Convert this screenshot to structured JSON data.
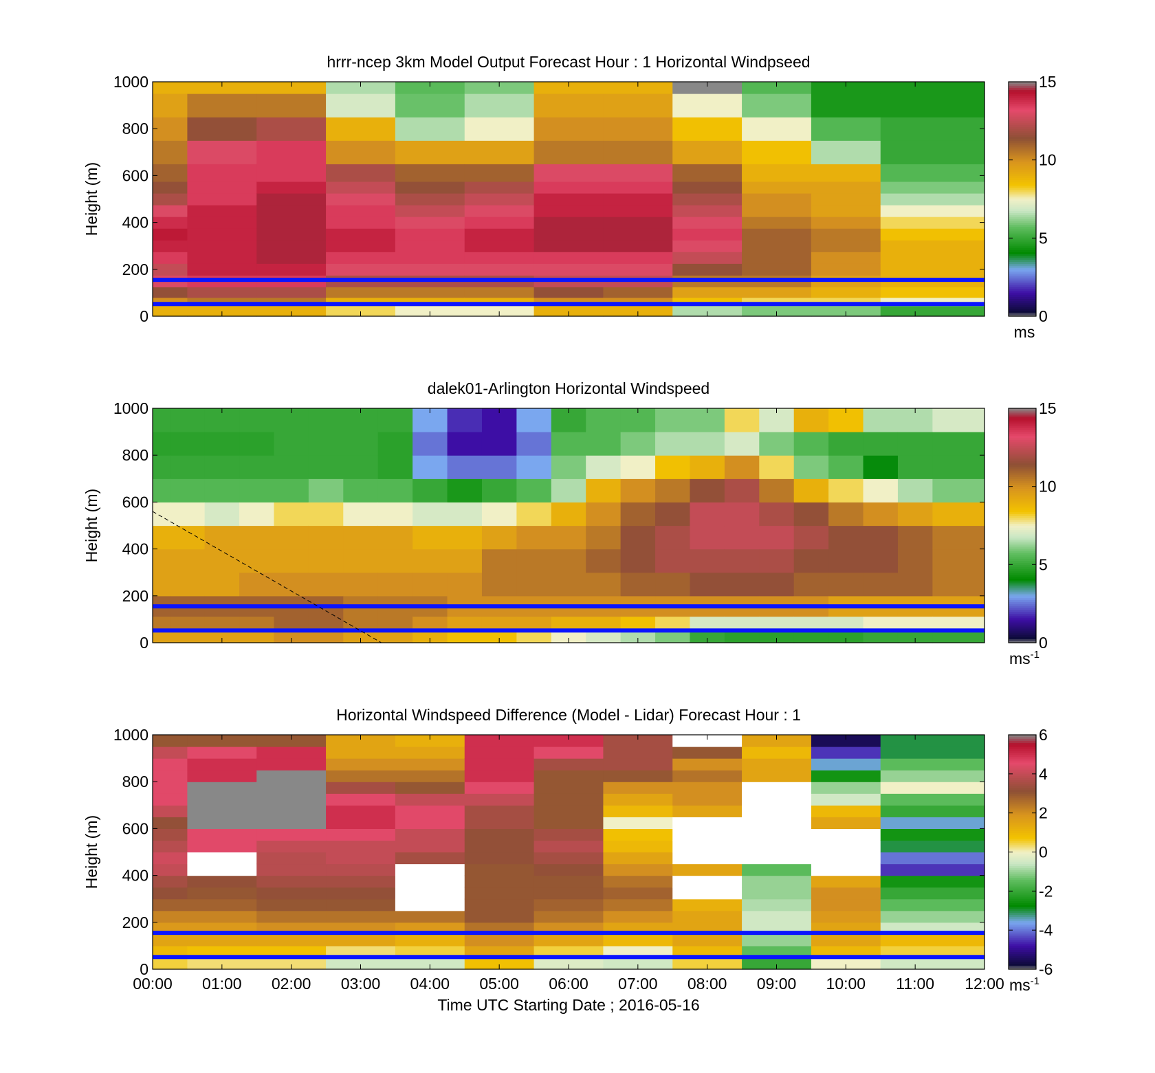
{
  "figure": {
    "xlabel": "Time UTC  Starting Date ; 2016-05-16",
    "colors": {
      "reference_line": "#0a14ff",
      "missing": "#ffffff",
      "dashed_line": "#000000"
    }
  },
  "chart_data": [
    {
      "type": "heatmap",
      "title": "hrrr-ncep 3km Model Output   Forecast Hour : 1 Horizontal Windpseed",
      "ylabel": "Height (m)",
      "ylim": [
        0,
        1000
      ],
      "y_ticks": [
        "0",
        "200",
        "400",
        "600",
        "800",
        "1000"
      ],
      "xlim_hours": [
        0,
        12
      ],
      "colorbar": {
        "min": 0,
        "max": 15,
        "ticks": [
          "0",
          "5",
          "10",
          "15"
        ],
        "unit": "ms",
        "unit_sup": ""
      },
      "reference_lines_m": [
        155,
        52
      ],
      "time_hours": [
        0,
        1,
        2,
        3,
        4,
        5,
        6,
        7,
        8,
        9,
        10,
        11
      ],
      "heights_m": [
        30,
        60,
        100,
        150,
        200,
        250,
        300,
        350,
        400,
        450,
        500,
        550,
        600,
        700,
        800,
        900,
        1000
      ],
      "values": [
        [
          9.0,
          10.0,
          11.5,
          13.0,
          12.5,
          13.5,
          14.0,
          14.2,
          13.8,
          13.0,
          12.0,
          11.5,
          11.0,
          10.5,
          10.0,
          9.5,
          9.0
        ],
        [
          9.0,
          10.5,
          12.0,
          13.5,
          14.0,
          14.0,
          14.0,
          14.0,
          14.0,
          14.0,
          13.5,
          13.5,
          13.5,
          13.0,
          11.5,
          10.5,
          9.0
        ],
        [
          9.0,
          10.5,
          12.0,
          13.5,
          14.0,
          14.5,
          14.5,
          14.5,
          14.5,
          14.5,
          14.5,
          14.0,
          13.5,
          13.5,
          12.0,
          10.5,
          9.0
        ],
        [
          8.0,
          9.0,
          10.5,
          12.0,
          13.0,
          13.5,
          14.0,
          14.0,
          13.5,
          13.5,
          13.0,
          12.5,
          12.0,
          10.0,
          9.0,
          7.0,
          6.5
        ],
        [
          7.5,
          9.0,
          10.5,
          12.0,
          13.0,
          13.5,
          13.5,
          13.5,
          13.0,
          12.5,
          12.0,
          11.5,
          11.0,
          9.5,
          6.5,
          5.8,
          5.6
        ],
        [
          7.5,
          9.0,
          10.5,
          12.0,
          13.0,
          13.5,
          14.0,
          14.0,
          13.5,
          13.0,
          12.5,
          12.0,
          11.0,
          9.5,
          7.5,
          6.5,
          6.0
        ],
        [
          9.0,
          10.0,
          11.5,
          12.5,
          13.0,
          13.5,
          14.5,
          14.5,
          14.5,
          14.0,
          14.0,
          13.5,
          13.0,
          10.5,
          10.0,
          9.5,
          9.0
        ],
        [
          9.0,
          10.0,
          11.0,
          12.5,
          13.0,
          13.5,
          14.5,
          14.5,
          14.5,
          14.0,
          14.0,
          13.5,
          13.0,
          10.5,
          10.0,
          9.5,
          9.0
        ],
        [
          6.5,
          8.5,
          9.5,
          10.5,
          11.5,
          12.5,
          13.0,
          13.5,
          13.0,
          12.5,
          12.0,
          11.5,
          11.0,
          9.5,
          8.5,
          7.5,
          16.0
        ],
        [
          6.0,
          8.0,
          9.5,
          10.5,
          11.0,
          11.0,
          11.0,
          11.0,
          10.5,
          10.0,
          10.0,
          9.5,
          9.0,
          8.5,
          7.5,
          6.0,
          5.5
        ],
        [
          6.0,
          8.0,
          9.0,
          9.5,
          10.0,
          10.0,
          10.5,
          10.5,
          10.0,
          9.5,
          9.5,
          9.5,
          9.0,
          6.5,
          5.5,
          4.5,
          4.5
        ],
        [
          5.0,
          7.5,
          8.5,
          9.0,
          9.0,
          9.0,
          9.0,
          8.5,
          8.0,
          7.5,
          6.5,
          6.0,
          5.5,
          5.0,
          5.0,
          4.5,
          4.5
        ]
      ]
    },
    {
      "type": "heatmap",
      "title": "dalek01-Arlington  Horizontal Windspeed",
      "ylabel": "Height (m)",
      "ylim": [
        0,
        1000
      ],
      "y_ticks": [
        "0",
        "200",
        "400",
        "600",
        "800",
        "1000"
      ],
      "xlim_hours": [
        0,
        12
      ],
      "colorbar": {
        "min": 0,
        "max": 15,
        "ticks": [
          "0",
          "5",
          "10",
          "15"
        ],
        "unit": "ms",
        "unit_sup": "-1"
      },
      "reference_lines_m": [
        155,
        52
      ],
      "dashed_line": {
        "from": [
          0,
          560
        ],
        "to": [
          3.3,
          0
        ]
      },
      "time_hours": [
        0,
        0.5,
        1,
        1.5,
        2,
        2.5,
        3,
        3.5,
        4,
        4.5,
        5,
        5.5,
        6,
        6.5,
        7,
        7.5,
        8,
        8.5,
        9,
        9.5,
        10,
        10.5,
        11,
        11.5
      ],
      "heights_m": [
        25,
        75,
        150,
        250,
        350,
        450,
        550,
        650,
        750,
        850,
        950
      ],
      "values": [
        [
          9.5,
          10.5,
          11.0,
          9.5,
          9.5,
          9.0,
          7.5,
          5.5,
          5.0,
          4.8,
          5.0
        ],
        [
          9.5,
          10.5,
          11.0,
          9.5,
          9.5,
          9.0,
          7.5,
          5.5,
          5.0,
          4.8,
          5.0
        ],
        [
          9.5,
          10.5,
          11.0,
          9.5,
          9.5,
          9.5,
          7.0,
          5.5,
          5.0,
          4.8,
          5.0
        ],
        [
          9.5,
          10.5,
          11.0,
          10.0,
          9.5,
          9.5,
          7.5,
          5.5,
          5.0,
          4.8,
          5.0
        ],
        [
          10.0,
          11.0,
          11.0,
          10.0,
          9.5,
          9.5,
          8.0,
          5.5,
          5.0,
          5.0,
          5.0
        ],
        [
          10.0,
          11.0,
          11.0,
          10.0,
          9.5,
          9.5,
          8.0,
          6.0,
          5.0,
          5.0,
          5.0
        ],
        [
          9.5,
          10.5,
          10.5,
          10.0,
          9.5,
          9.5,
          7.5,
          5.5,
          5.0,
          5.0,
          5.0
        ],
        [
          9.5,
          10.5,
          10.5,
          10.0,
          9.5,
          9.5,
          7.5,
          5.5,
          4.8,
          4.8,
          5.0
        ],
        [
          9.0,
          10.0,
          10.5,
          10.0,
          9.5,
          9.0,
          7.0,
          5.0,
          3.0,
          2.5,
          3.0
        ],
        [
          8.5,
          9.5,
          10.0,
          10.0,
          9.5,
          9.0,
          7.0,
          4.5,
          2.5,
          1.5,
          1.8
        ],
        [
          8.5,
          9.5,
          10.0,
          10.5,
          10.5,
          9.5,
          7.5,
          5.0,
          2.5,
          1.5,
          1.5
        ],
        [
          8.0,
          9.5,
          10.0,
          10.5,
          10.5,
          10.0,
          8.0,
          5.5,
          3.0,
          2.5,
          3.0
        ],
        [
          7.5,
          9.0,
          10.0,
          10.5,
          10.5,
          10.0,
          9.0,
          6.5,
          6.0,
          5.5,
          5.0
        ],
        [
          7.0,
          9.0,
          10.0,
          10.5,
          11.0,
          10.5,
          10.0,
          9.0,
          7.0,
          5.5,
          5.5
        ],
        [
          6.5,
          8.5,
          10.0,
          11.0,
          11.5,
          11.5,
          11.0,
          10.0,
          7.5,
          6.0,
          5.5
        ],
        [
          6.0,
          8.0,
          10.0,
          11.0,
          12.0,
          12.0,
          11.5,
          10.5,
          8.5,
          6.5,
          6.0
        ],
        [
          5.0,
          7.0,
          10.0,
          11.5,
          12.0,
          12.5,
          12.5,
          11.5,
          9.0,
          6.5,
          6.0
        ],
        [
          4.8,
          7.0,
          10.0,
          11.5,
          12.0,
          12.5,
          12.5,
          12.0,
          10.0,
          7.0,
          8.0
        ],
        [
          4.8,
          7.0,
          10.0,
          11.5,
          12.0,
          12.5,
          12.0,
          10.5,
          8.0,
          6.0,
          7.0
        ],
        [
          4.8,
          7.0,
          10.0,
          11.0,
          11.5,
          12.0,
          11.5,
          9.0,
          6.0,
          5.5,
          9.0
        ],
        [
          4.8,
          7.0,
          9.5,
          11.0,
          11.5,
          11.5,
          10.5,
          8.0,
          5.5,
          5.0,
          8.5
        ],
        [
          5.0,
          7.5,
          9.5,
          11.0,
          11.5,
          11.5,
          10.0,
          7.5,
          4.0,
          5.0,
          6.5
        ],
        [
          5.0,
          7.5,
          9.5,
          11.0,
          11.0,
          11.0,
          9.5,
          6.5,
          5.0,
          5.0,
          6.5
        ],
        [
          5.0,
          7.5,
          9.5,
          10.5,
          10.5,
          10.5,
          9.0,
          6.0,
          5.0,
          5.0,
          7.0
        ]
      ]
    },
    {
      "type": "heatmap",
      "title": "Horizontal Windspeed Difference (Model - Lidar) Forecast Hour : 1",
      "ylabel": "Height (m)",
      "ylim": [
        0,
        1000
      ],
      "y_ticks": [
        "0",
        "200",
        "400",
        "600",
        "800",
        "1000"
      ],
      "x_ticks": [
        "00:00",
        "01:00",
        "02:00",
        "03:00",
        "04:00",
        "05:00",
        "06:00",
        "07:00",
        "08:00",
        "09:00",
        "10:00",
        "11:00",
        "12:00"
      ],
      "xlim_hours": [
        0,
        12
      ],
      "colorbar": {
        "min": -6,
        "max": 6,
        "ticks": [
          "-6",
          "-4",
          "-2",
          "0",
          "2",
          "4",
          "6"
        ],
        "unit": "ms",
        "unit_sup": "-1"
      },
      "reference_lines_m": [
        155,
        52
      ],
      "time_hours": [
        0,
        1,
        2,
        3,
        4,
        5,
        6,
        7,
        8,
        9,
        10,
        11
      ],
      "heights_m": [
        25,
        75,
        125,
        175,
        225,
        275,
        325,
        375,
        425,
        475,
        525,
        575,
        625,
        675,
        725,
        775,
        825,
        875,
        925,
        975
      ],
      "values": [
        [
          0.5,
          1.0,
          1.5,
          1.8,
          2.2,
          2.8,
          3.2,
          3.5,
          4.0,
          4.2,
          3.8,
          3.5,
          3.2,
          4.0,
          4.5,
          4.5,
          4.5,
          4.5,
          4.0,
          3.0
        ],
        [
          0.3,
          0.8,
          1.5,
          1.8,
          2.2,
          2.8,
          3.0,
          3.2,
          null,
          null,
          4.5,
          4.5,
          6.5,
          6.5,
          6.5,
          6.5,
          5.0,
          5.0,
          4.5,
          3.0
        ],
        [
          0.3,
          0.8,
          1.5,
          2.0,
          2.5,
          3.0,
          3.2,
          3.5,
          3.8,
          3.8,
          4.0,
          4.5,
          6.5,
          6.5,
          6.5,
          6.5,
          6.5,
          5.0,
          5.0,
          3.0
        ],
        [
          -0.5,
          0.3,
          1.5,
          2.0,
          2.5,
          3.0,
          3.2,
          3.5,
          3.8,
          4.0,
          4.0,
          4.5,
          5.0,
          5.0,
          4.5,
          3.5,
          2.5,
          2.0,
          1.5,
          1.5
        ],
        [
          -0.5,
          0.5,
          1.2,
          1.8,
          2.5,
          null,
          null,
          null,
          null,
          3.5,
          4.0,
          4.0,
          4.5,
          4.5,
          4.0,
          3.0,
          2.5,
          2.0,
          1.5,
          1.2
        ],
        [
          0.8,
          1.5,
          2.0,
          2.5,
          3.0,
          3.0,
          3.0,
          3.0,
          3.0,
          3.2,
          3.2,
          3.2,
          3.5,
          3.5,
          4.0,
          4.5,
          5.0,
          5.0,
          5.0,
          5.0
        ],
        [
          -0.3,
          0.5,
          1.5,
          2.0,
          2.5,
          2.8,
          3.0,
          3.0,
          3.2,
          3.5,
          3.8,
          3.5,
          3.0,
          3.0,
          3.0,
          3.0,
          3.0,
          3.5,
          4.5,
          5.0
        ],
        [
          -0.5,
          0.0,
          1.0,
          1.5,
          2.0,
          2.5,
          2.8,
          2.5,
          2.0,
          1.5,
          1.0,
          0.8,
          0.0,
          1.0,
          1.5,
          2.0,
          3.0,
          3.5,
          3.5,
          3.5
        ],
        [
          0.5,
          1.0,
          1.5,
          1.5,
          1.5,
          1.2,
          null,
          null,
          1.5,
          null,
          null,
          null,
          null,
          1.5,
          2.0,
          2.0,
          2.5,
          2.0,
          3.0,
          null
        ],
        [
          -2.0,
          -1.5,
          -1.0,
          -0.5,
          -0.5,
          -0.8,
          -1.0,
          -1.0,
          -1.5,
          null,
          null,
          null,
          null,
          null,
          null,
          null,
          1.5,
          1.5,
          1.0,
          1.5
        ],
        [
          0.0,
          1.0,
          1.5,
          1.5,
          1.8,
          2.0,
          2.0,
          1.5,
          null,
          null,
          null,
          null,
          1.5,
          1.0,
          -0.5,
          -1.0,
          -2.5,
          -3.5,
          -4.5,
          -5.5
        ],
        [
          -0.5,
          0.5,
          1.0,
          -0.5,
          -1.0,
          -1.5,
          -2.0,
          -2.5,
          -4.5,
          -4.0,
          -3.0,
          -2.5,
          -3.5,
          -2.0,
          -1.5,
          0.0,
          -1.0,
          -1.5,
          -3.0,
          -3.0
        ]
      ]
    }
  ]
}
